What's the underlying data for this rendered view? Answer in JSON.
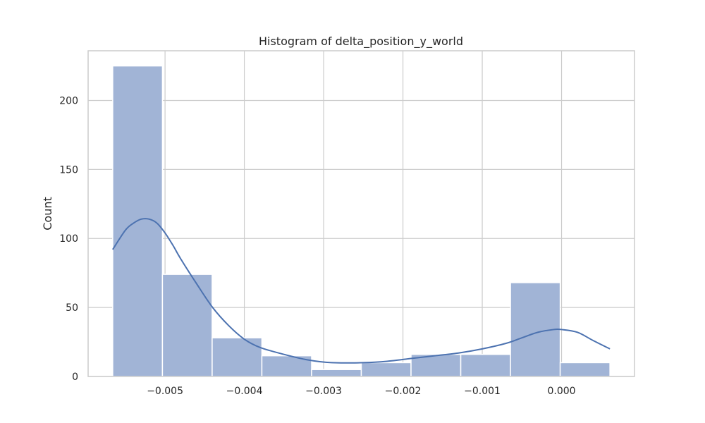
{
  "chart_data": {
    "type": "bar",
    "title": "Histogram of delta_position_y_world",
    "xlabel": "",
    "ylabel": "Count",
    "bin_edges": [
      -0.00566,
      -0.005033,
      -0.004406,
      -0.003779,
      -0.003152,
      -0.002525,
      -0.001898,
      -0.001271,
      -0.000644,
      -1.7e-05,
      0.00061
    ],
    "values": [
      225,
      74,
      28,
      15,
      5,
      10,
      16,
      16,
      68,
      10
    ],
    "xlim": [
      -0.00597,
      0.00092
    ],
    "ylim": [
      0,
      236
    ],
    "xticks": [
      -0.005,
      -0.004,
      -0.003,
      -0.002,
      -0.001,
      0.0
    ],
    "xtick_labels": [
      "−0.005",
      "−0.004",
      "−0.003",
      "−0.002",
      "−0.001",
      "0.000"
    ],
    "yticks": [
      0,
      50,
      100,
      150,
      200
    ],
    "ytick_labels": [
      "0",
      "50",
      "100",
      "150",
      "200"
    ],
    "kde": {
      "x": [
        -0.00566,
        -0.0055,
        -0.0054,
        -0.0053,
        -0.0052,
        -0.0051,
        -0.005,
        -0.0049,
        -0.0048,
        -0.0046,
        -0.0044,
        -0.0042,
        -0.004,
        -0.0038,
        -0.0035,
        -0.0032,
        -0.0029,
        -0.0025,
        -0.0022,
        -0.0019,
        -0.0016,
        -0.0013,
        -0.001,
        -0.0007,
        -0.0005,
        -0.0003,
        -0.0001,
        0.0,
        0.0002,
        0.0004,
        0.00061
      ],
      "y": [
        92,
        106,
        111,
        114,
        114,
        111,
        104,
        95,
        85,
        67,
        50,
        37,
        27,
        21,
        16,
        12,
        10,
        10,
        11,
        13,
        15,
        17,
        20,
        24,
        28,
        32,
        34,
        34,
        32,
        26,
        20
      ]
    },
    "grid": true,
    "legend": "none",
    "colors": {
      "bar_fill": "#a1b4d6",
      "bar_edge": "#ffffff",
      "kde_line": "#4c72b0",
      "grid": "#cccccc",
      "frame": "#cccccc",
      "text": "#262626"
    }
  }
}
